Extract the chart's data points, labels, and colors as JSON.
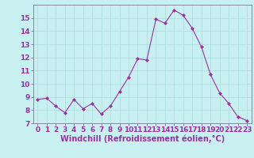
{
  "x": [
    0,
    1,
    2,
    3,
    4,
    5,
    6,
    7,
    8,
    9,
    10,
    11,
    12,
    13,
    14,
    15,
    16,
    17,
    18,
    19,
    20,
    21,
    22,
    23
  ],
  "y": [
    8.8,
    8.9,
    8.3,
    7.8,
    8.8,
    8.1,
    8.5,
    7.7,
    8.3,
    9.4,
    10.5,
    11.9,
    11.8,
    14.9,
    14.6,
    15.6,
    15.2,
    14.2,
    12.8,
    10.7,
    9.3,
    8.5,
    7.5,
    7.2
  ],
  "line_color": "#9b30a0",
  "marker": "D",
  "marker_size": 2.0,
  "bg_color": "#c8f0f0",
  "grid_color": "#aadddd",
  "axis_color": "#7a7a9a",
  "xlabel": "Windchill (Refroidissement éolien,°C)",
  "xlim": [
    -0.5,
    23.5
  ],
  "ylim": [
    7,
    16
  ],
  "yticks": [
    7,
    8,
    9,
    10,
    11,
    12,
    13,
    14,
    15
  ],
  "xticks": [
    0,
    1,
    2,
    3,
    4,
    5,
    6,
    7,
    8,
    9,
    10,
    11,
    12,
    13,
    14,
    15,
    16,
    17,
    18,
    19,
    20,
    21,
    22,
    23
  ],
  "font_color": "#9b30a0",
  "tick_font_size": 6.5,
  "xlabel_font_size": 7.0
}
